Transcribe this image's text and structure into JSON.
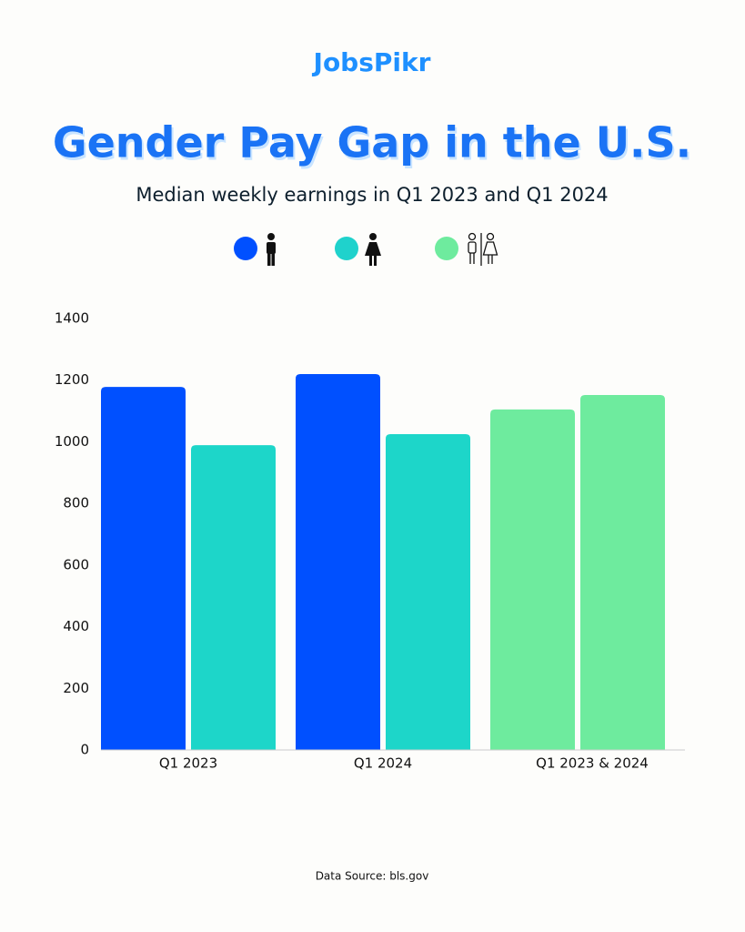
{
  "brand": "JobsPikr",
  "chart_data": {
    "type": "grouped-bar",
    "title": "Gender Pay Gap in the U.S.",
    "subtitle": "Median weekly earnings in Q1 2023 and Q1 2024",
    "legend_colors": [
      "#0050ff",
      "#1fd2cc",
      "#6eeb9e"
    ],
    "groups": [
      {
        "label": "Q1 2023",
        "values": [
          1178,
          989
        ],
        "colors": [
          "#0050ff",
          "#1dd6c9"
        ]
      },
      {
        "label": "Q1 2024",
        "values": [
          1220,
          1025
        ],
        "colors": [
          "#0050ff",
          "#1dd6c9"
        ]
      },
      {
        "label": "Q1 2023 & 2024",
        "values": [
          1105,
          1152
        ],
        "colors": [
          "#6eeb9e",
          "#6eeb9e"
        ]
      }
    ],
    "ylim": [
      0,
      1400
    ],
    "yticks": [
      0,
      200,
      400,
      600,
      800,
      1000,
      1200,
      1400
    ],
    "grid": false,
    "source": "Data Source: bls.gov"
  }
}
